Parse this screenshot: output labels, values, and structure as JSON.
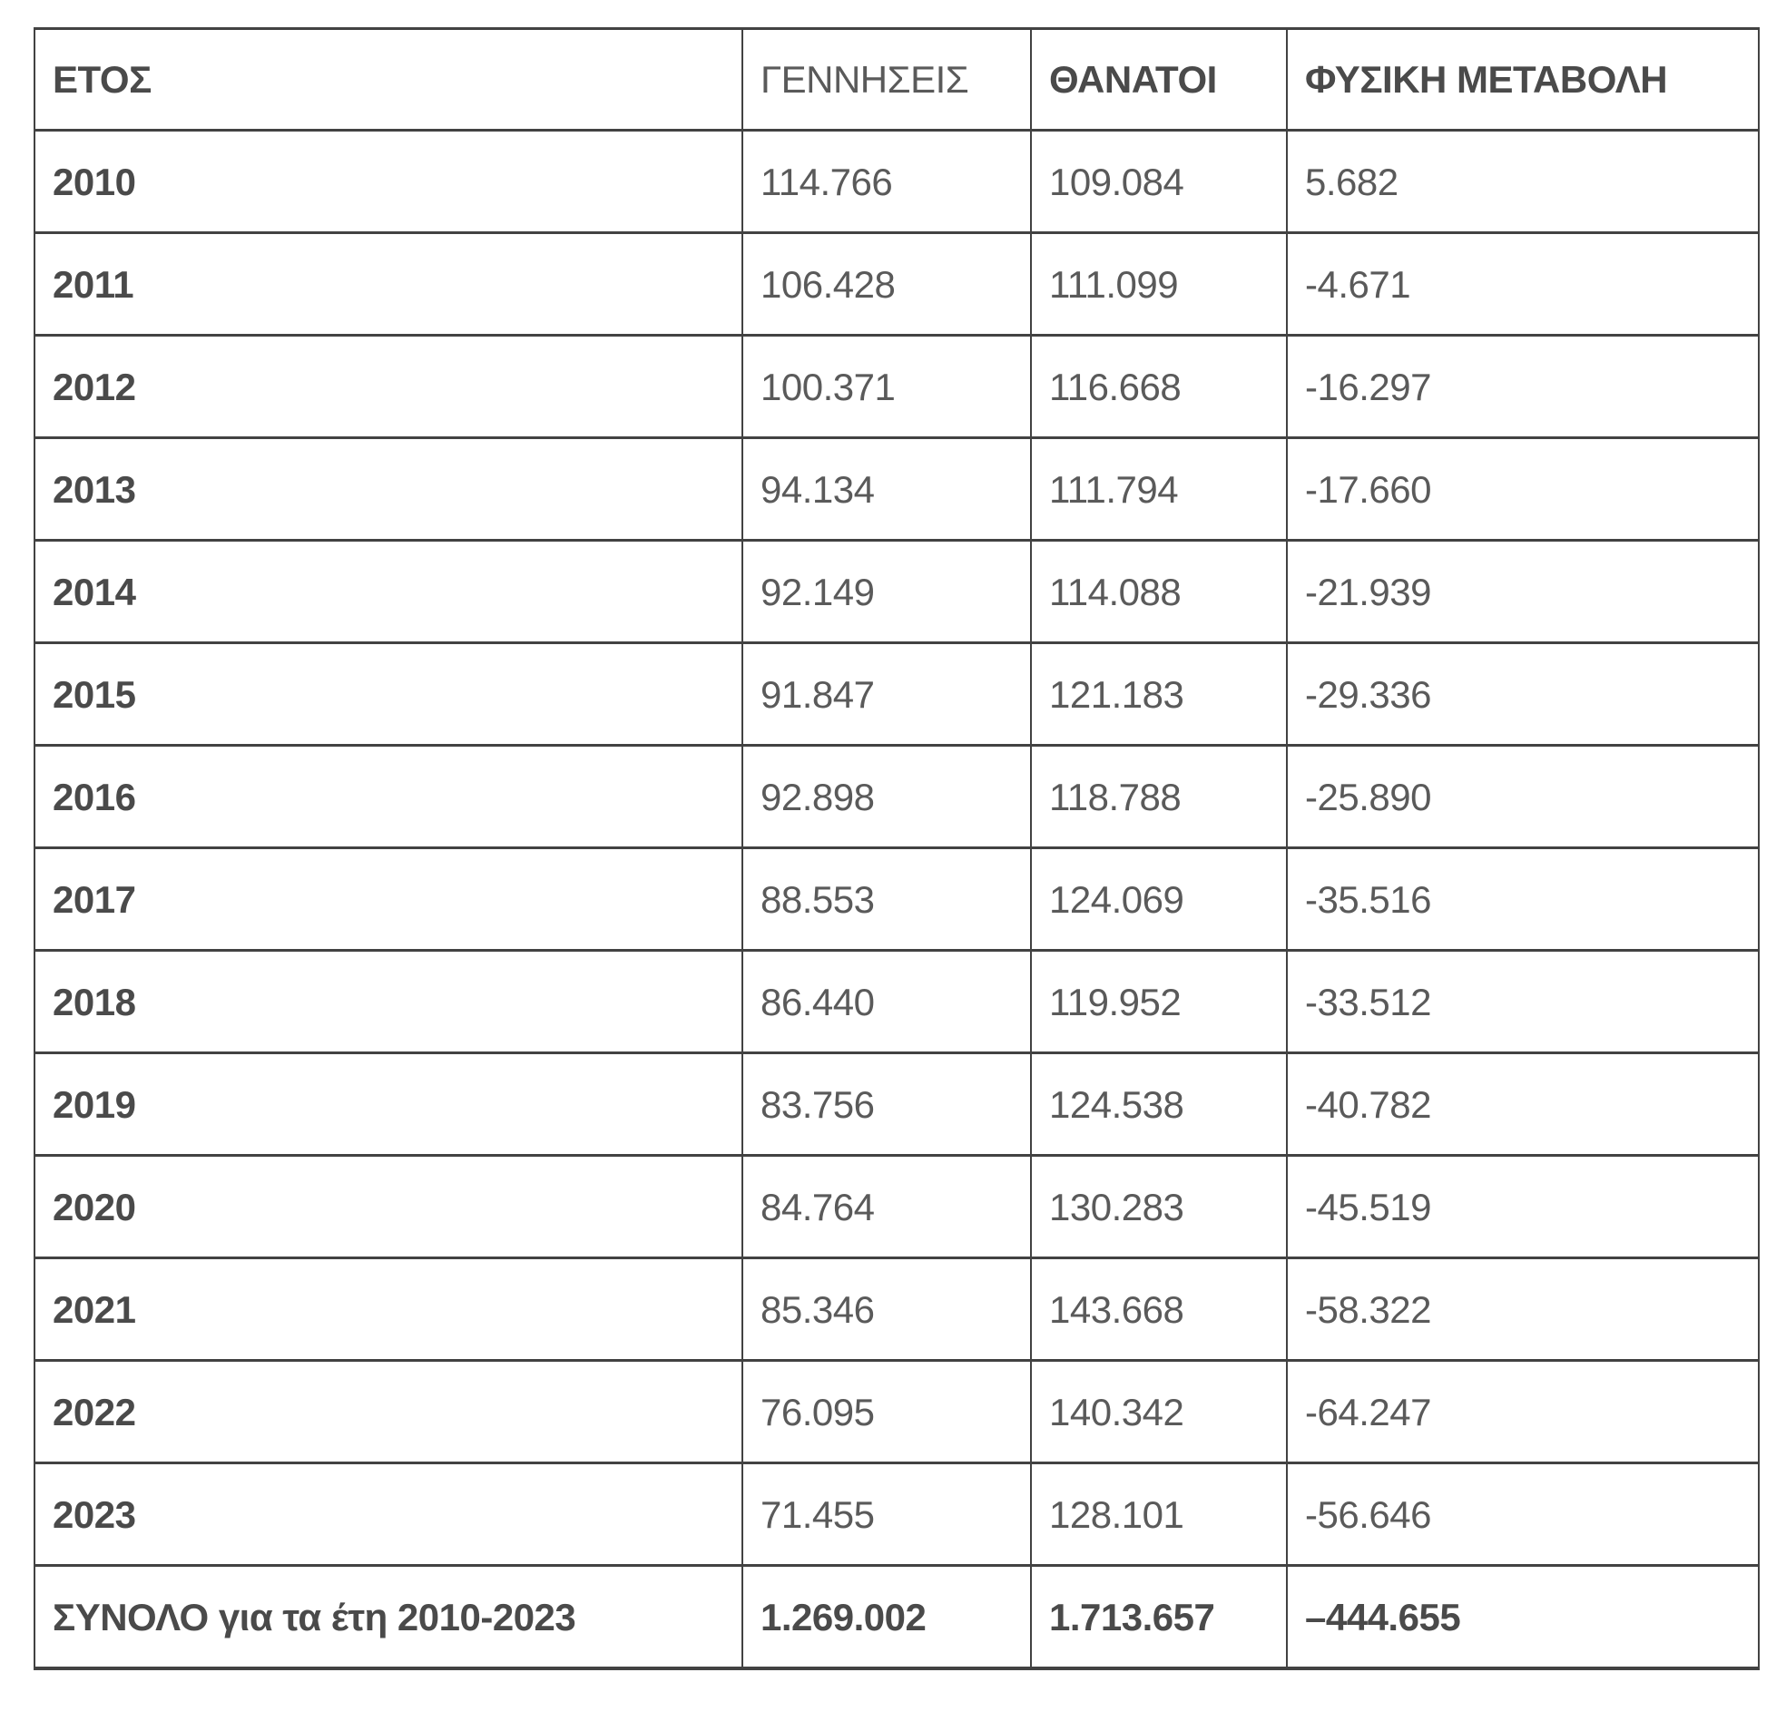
{
  "chart_data": {
    "type": "table",
    "title": "",
    "columns": [
      "ΕΤΟΣ",
      "ΓΕΝΝΗΣΕΙΣ",
      "ΘΑΝΑΤΟΙ",
      "ΦΥΣΙΚΗ ΜΕΤΑΒΟΛΗ"
    ],
    "rows": [
      [
        "2010",
        "114.766",
        "109.084",
        "5.682"
      ],
      [
        "2011",
        "106.428",
        "111.099",
        "-4.671"
      ],
      [
        "2012",
        "100.371",
        "116.668",
        "-16.297"
      ],
      [
        "2013",
        "94.134",
        "111.794",
        "-17.660"
      ],
      [
        "2014",
        "92.149",
        "114.088",
        "-21.939"
      ],
      [
        "2015",
        "91.847",
        "121.183",
        "-29.336"
      ],
      [
        "2016",
        "92.898",
        "118.788",
        "-25.890"
      ],
      [
        "2017",
        "88.553",
        "124.069",
        "-35.516"
      ],
      [
        "2018",
        "86.440",
        "119.952",
        "-33.512"
      ],
      [
        "2019",
        "83.756",
        "124.538",
        "-40.782"
      ],
      [
        "2020",
        "84.764",
        "130.283",
        "-45.519"
      ],
      [
        "2021",
        "85.346",
        "143.668",
        "-58.322"
      ],
      [
        "2022",
        "76.095",
        "140.342",
        "-64.247"
      ],
      [
        "2023",
        "71.455",
        "128.101",
        "-56.646"
      ]
    ],
    "total_row": [
      "ΣΥΝΟΛΟ για τα έτη 2010-2023",
      "1.269.002",
      "1.713.657",
      "–444.655"
    ],
    "categories": [
      "2010",
      "2011",
      "2012",
      "2013",
      "2014",
      "2015",
      "2016",
      "2017",
      "2018",
      "2019",
      "2020",
      "2021",
      "2022",
      "2023"
    ],
    "series": [
      {
        "name": "ΓΕΝΝΗΣΕΙΣ",
        "values": [
          114766,
          106428,
          100371,
          94134,
          92149,
          91847,
          92898,
          88553,
          86440,
          83756,
          84764,
          85346,
          76095,
          71455
        ]
      },
      {
        "name": "ΘΑΝΑΤΟΙ",
        "values": [
          109084,
          111099,
          116668,
          111794,
          114088,
          121183,
          118788,
          124069,
          119952,
          124538,
          130283,
          143668,
          140342,
          128101
        ]
      },
      {
        "name": "ΦΥΣΙΚΗ ΜΕΤΑΒΟΛΗ",
        "values": [
          5682,
          -4671,
          -16297,
          -17660,
          -21939,
          -29336,
          -25890,
          -35516,
          -33512,
          -40782,
          -45519,
          -58322,
          -64247,
          -56646
        ]
      }
    ],
    "totals": {
      "births": 1269002,
      "deaths": 1713657,
      "natural_change": -444655
    },
    "grid": true,
    "legend_position": "none"
  },
  "colors": {
    "border": "#424242",
    "text_strong": "#4a4a4a",
    "text_regular": "#5a5a5a",
    "background": "#ffffff"
  }
}
